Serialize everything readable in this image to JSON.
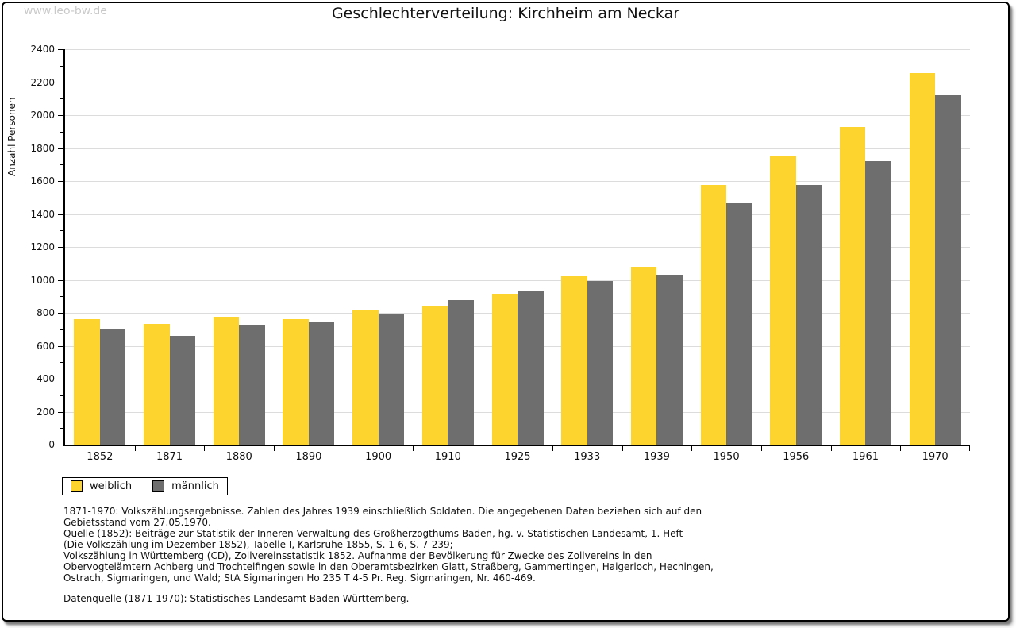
{
  "page": {
    "watermark": "www.leo-bw.de",
    "title": "Geschlechterverteilung: Kirchheim am Neckar"
  },
  "chart_data": {
    "type": "bar",
    "title": "Geschlechterverteilung: Kirchheim am Neckar",
    "xlabel": "",
    "ylabel": "Anzahl Personen",
    "categories": [
      "1852",
      "1871",
      "1880",
      "1890",
      "1900",
      "1910",
      "1925",
      "1933",
      "1939",
      "1950",
      "1956",
      "1961",
      "1970"
    ],
    "series": [
      {
        "name": "weiblich",
        "color": "#FCD42D",
        "values": [
          760,
          735,
          775,
          760,
          815,
          845,
          915,
          1020,
          1080,
          1575,
          1750,
          1930,
          2255
        ]
      },
      {
        "name": "männlich",
        "color": "#6E6E6E",
        "values": [
          705,
          660,
          730,
          740,
          790,
          875,
          930,
          995,
          1025,
          1465,
          1575,
          1720,
          2120
        ]
      }
    ],
    "ylim": [
      0,
      2400
    ],
    "ytick_step": 200,
    "ytick_minor_step": 100,
    "grid": true,
    "legend_position": "bottom-left"
  },
  "notes": {
    "lines": [
      "1871-1970: Volkszählungsergebnisse. Zahlen des Jahres 1939 einschließlich Soldaten. Die angegebenen Daten beziehen sich auf den",
      "Gebietsstand vom 27.05.1970.",
      "Quelle (1852): Beiträge zur Statistik der Inneren Verwaltung des Großherzogthums Baden, hg. v. Statistischen Landesamt, 1. Heft",
      "(Die Volkszählung im Dezember 1852), Tabelle I, Karlsruhe 1855, S. 1-6, S. 7-239;",
      "Volkszählung in Württemberg (CD), Zollvereinsstatistik 1852. Aufnahme der Bevölkerung für Zwecke des Zollvereins in den",
      "Obervogteiämtern Achberg und Trochtelfingen sowie in den Oberamtsbezirken Glatt, Straßberg, Gammertingen, Haigerloch, Hechingen,",
      "Ostrach, Sigmaringen, und Wald; StA Sigmaringen Ho 235 T 4-5 Pr. Reg. Sigmaringen, Nr. 460-469."
    ],
    "datasource": "Datenquelle (1871-1970): Statistisches Landesamt Baden-Württemberg."
  },
  "colors": {
    "grid": "#DCDCDC",
    "axis": "#000000",
    "watermark": "#C9C9C9"
  }
}
